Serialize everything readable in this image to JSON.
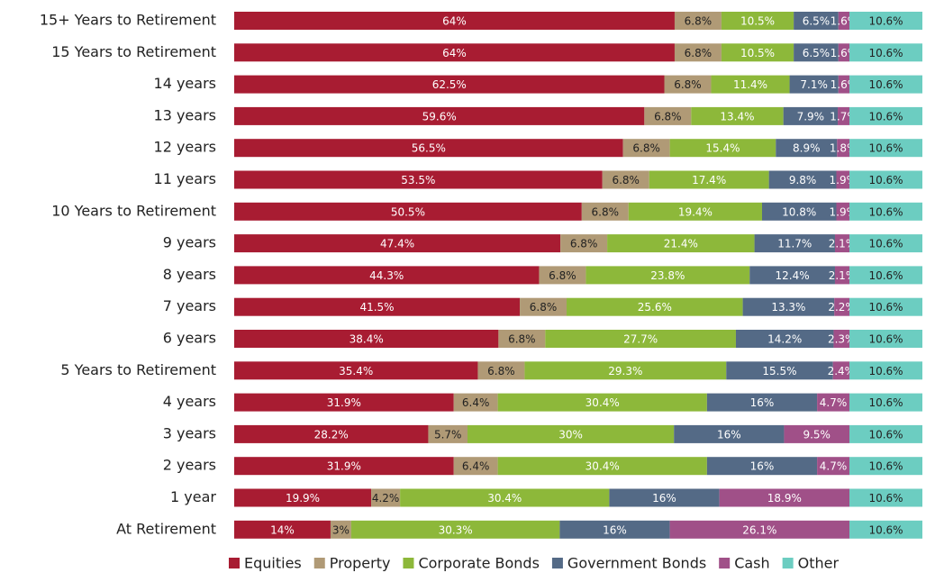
{
  "chart_data": {
    "type": "stacked-bar-horizontal",
    "categories": [
      "15+ Years to Retirement",
      "15 Years to Retirement",
      "14 years",
      "13 years",
      "12 years",
      "11 years",
      "10 Years to Retirement",
      "9 years",
      "8 years",
      "7 years",
      "6 years",
      "5 Years to Retirement",
      "4 years",
      "3 years",
      "2 years",
      "1 year",
      "At Retirement"
    ],
    "xlim": [
      0,
      100
    ],
    "legend": "bottom",
    "series": [
      {
        "name": "Equities",
        "color": "#a81c32",
        "values": [
          64,
          64,
          62.5,
          59.6,
          56.5,
          53.5,
          50.5,
          47.4,
          44.3,
          41.5,
          38.4,
          35.4,
          31.9,
          28.2,
          31.9,
          19.9,
          14
        ],
        "value_labels": [
          "64%",
          "64%",
          "62.5%",
          "59.6%",
          "56.5%",
          "53.5%",
          "50.5%",
          "47.4%",
          "44.3%",
          "41.5%",
          "38.4%",
          "35.4%",
          "31.9%",
          "28.2%",
          "31.9%",
          "19.9%",
          "14%"
        ]
      },
      {
        "name": "Property",
        "color": "#b09a76",
        "values": [
          6.8,
          6.8,
          6.8,
          6.8,
          6.8,
          6.8,
          6.8,
          6.8,
          6.8,
          6.8,
          6.8,
          6.8,
          6.4,
          5.7,
          6.4,
          4.2,
          3
        ],
        "value_labels": [
          "6.8%",
          "6.8%",
          "6.8%",
          "6.8%",
          "6.8%",
          "6.8%",
          "6.8%",
          "6.8%",
          "6.8%",
          "6.8%",
          "6.8%",
          "6.8%",
          "6.4%",
          "5.7%",
          "6.4%",
          "4.2%",
          "3%"
        ]
      },
      {
        "name": "Corporate Bonds",
        "color": "#8db83a",
        "values": [
          10.5,
          10.5,
          11.4,
          13.4,
          15.4,
          17.4,
          19.4,
          21.4,
          23.8,
          25.6,
          27.7,
          29.3,
          30.4,
          30,
          30.4,
          30.4,
          30.3
        ],
        "value_labels": [
          "10.5%",
          "10.5%",
          "11.4%",
          "13.4%",
          "15.4%",
          "17.4%",
          "19.4%",
          "21.4%",
          "23.8%",
          "25.6%",
          "27.7%",
          "29.3%",
          "30.4%",
          "30%",
          "30.4%",
          "30.4%",
          "30.3%"
        ]
      },
      {
        "name": "Government Bonds",
        "color": "#546a86",
        "values": [
          6.5,
          6.5,
          7.1,
          7.9,
          8.9,
          9.8,
          10.8,
          11.7,
          12.4,
          13.3,
          14.2,
          15.5,
          16,
          16,
          16,
          16,
          16
        ],
        "value_labels": [
          "6.5%",
          "6.5%",
          "7.1%",
          "7.9%",
          "8.9%",
          "9.8%",
          "10.8%",
          "11.7%",
          "12.4%",
          "13.3%",
          "14.2%",
          "15.5%",
          "16%",
          "16%",
          "16%",
          "16%",
          "16%"
        ]
      },
      {
        "name": "Cash",
        "color": "#a05088",
        "values": [
          1.6,
          1.6,
          1.6,
          1.7,
          1.8,
          1.9,
          1.9,
          2.1,
          2.1,
          2.2,
          2.3,
          2.4,
          4.7,
          9.5,
          4.7,
          18.9,
          26.1
        ],
        "value_labels": [
          "1.6%",
          "1.6%",
          "1.6%",
          "1.7%",
          "1.8%",
          "1.9%",
          "1.9%",
          "2.1%",
          "2.1%",
          "2.2%",
          "2.3%",
          "2.4%",
          "4.7%",
          "9.5%",
          "4.7%",
          "18.9%",
          "26.1%"
        ]
      },
      {
        "name": "Other",
        "color": "#6ccdc1",
        "values": [
          10.6,
          10.6,
          10.6,
          10.6,
          10.6,
          10.6,
          10.6,
          10.6,
          10.6,
          10.6,
          10.6,
          10.6,
          10.6,
          10.6,
          10.6,
          10.6,
          10.6
        ],
        "value_labels": [
          "10.6%",
          "10.6%",
          "10.6%",
          "10.6%",
          "10.6%",
          "10.6%",
          "10.6%",
          "10.6%",
          "10.6%",
          "10.6%",
          "10.6%",
          "10.6%",
          "10.6%",
          "10.6%",
          "10.6%",
          "10.6%",
          "10.6%"
        ]
      }
    ]
  }
}
